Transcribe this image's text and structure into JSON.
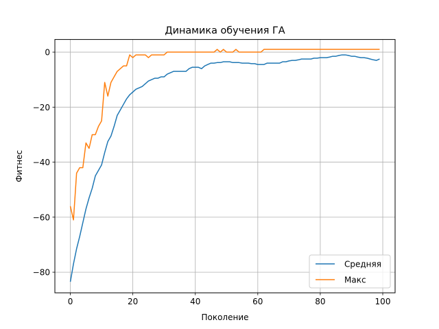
{
  "chart_data": {
    "type": "line",
    "title": "Динамика обучения ГА",
    "xlabel": "Поколение",
    "ylabel": "Фитнес",
    "xlim": [
      -4.95,
      103.95
    ],
    "ylim": [
      -87.5,
      4.6
    ],
    "xticks": [
      0,
      20,
      40,
      60,
      80,
      100
    ],
    "yticks": [
      -80,
      -60,
      -40,
      -20,
      0
    ],
    "xtick_labels": [
      "0",
      "20",
      "40",
      "60",
      "80",
      "100"
    ],
    "ytick_labels": [
      "−80",
      "−60",
      "−40",
      "−20",
      "0"
    ],
    "grid": true,
    "legend_position": "lower-right",
    "x": [
      0,
      1,
      2,
      3,
      4,
      5,
      6,
      7,
      8,
      9,
      10,
      11,
      12,
      13,
      14,
      15,
      16,
      17,
      18,
      19,
      20,
      21,
      22,
      23,
      24,
      25,
      26,
      27,
      28,
      29,
      30,
      31,
      32,
      33,
      34,
      35,
      36,
      37,
      38,
      39,
      40,
      41,
      42,
      43,
      44,
      45,
      46,
      47,
      48,
      49,
      50,
      51,
      52,
      53,
      54,
      55,
      56,
      57,
      58,
      59,
      60,
      61,
      62,
      63,
      64,
      65,
      66,
      67,
      68,
      69,
      70,
      71,
      72,
      73,
      74,
      75,
      76,
      77,
      78,
      79,
      80,
      81,
      82,
      83,
      84,
      85,
      86,
      87,
      88,
      89,
      90,
      91,
      92,
      93,
      94,
      95,
      96,
      97,
      98,
      99
    ],
    "series": [
      {
        "name": "Средняя",
        "color": "#1f77b4",
        "values": [
          -83.5,
          -77,
          -71.5,
          -67,
          -62,
          -57,
          -53,
          -49.5,
          -45,
          -43,
          -41,
          -36.5,
          -32.5,
          -30.5,
          -27,
          -23,
          -21,
          -19,
          -17,
          -15.5,
          -14.5,
          -13.5,
          -13,
          -12.5,
          -11.5,
          -10.5,
          -10,
          -9.5,
          -9.5,
          -9,
          -9,
          -8,
          -7.5,
          -7,
          -7,
          -7,
          -7,
          -7,
          -6,
          -5.5,
          -5.5,
          -5.5,
          -6,
          -5,
          -4.5,
          -4,
          -4,
          -3.8,
          -3.8,
          -3.5,
          -3.5,
          -3.5,
          -3.8,
          -3.8,
          -3.8,
          -4,
          -4,
          -4,
          -4.2,
          -4.2,
          -4.5,
          -4.5,
          -4.5,
          -4,
          -4,
          -4,
          -4,
          -4,
          -3.5,
          -3.5,
          -3.2,
          -3,
          -3,
          -2.8,
          -2.5,
          -2.5,
          -2.5,
          -2.5,
          -2.2,
          -2.2,
          -2,
          -2,
          -2,
          -1.8,
          -1.5,
          -1.5,
          -1.2,
          -1,
          -1,
          -1.2,
          -1.5,
          -1.5,
          -1.8,
          -2,
          -2,
          -2.2,
          -2.5,
          -2.8,
          -3,
          -2.5
        ]
      },
      {
        "name": "Макс",
        "color": "#ff7f0e",
        "values": [
          -56,
          -61,
          -44,
          -42,
          -42,
          -33,
          -35,
          -30,
          -30,
          -27,
          -25,
          -11,
          -16,
          -11,
          -9,
          -7,
          -6,
          -5,
          -5,
          -1,
          -2,
          -1,
          -1,
          -1,
          -1,
          -2,
          -1,
          -1,
          -1,
          -1,
          -1,
          0,
          0,
          0,
          0,
          0,
          0,
          0,
          0,
          0,
          0,
          0,
          0,
          0,
          0,
          0,
          0,
          1,
          0,
          1,
          0,
          0,
          0,
          1,
          0,
          0,
          0,
          0,
          0,
          0,
          0,
          0,
          1,
          1,
          1,
          1,
          1,
          1,
          1,
          1,
          1,
          1,
          1,
          1,
          1,
          1,
          1,
          1,
          1,
          1,
          1,
          1,
          1,
          1,
          1,
          1,
          1,
          1,
          1,
          1,
          1,
          1,
          1,
          1,
          1,
          1,
          1,
          1,
          1,
          1
        ]
      }
    ]
  }
}
